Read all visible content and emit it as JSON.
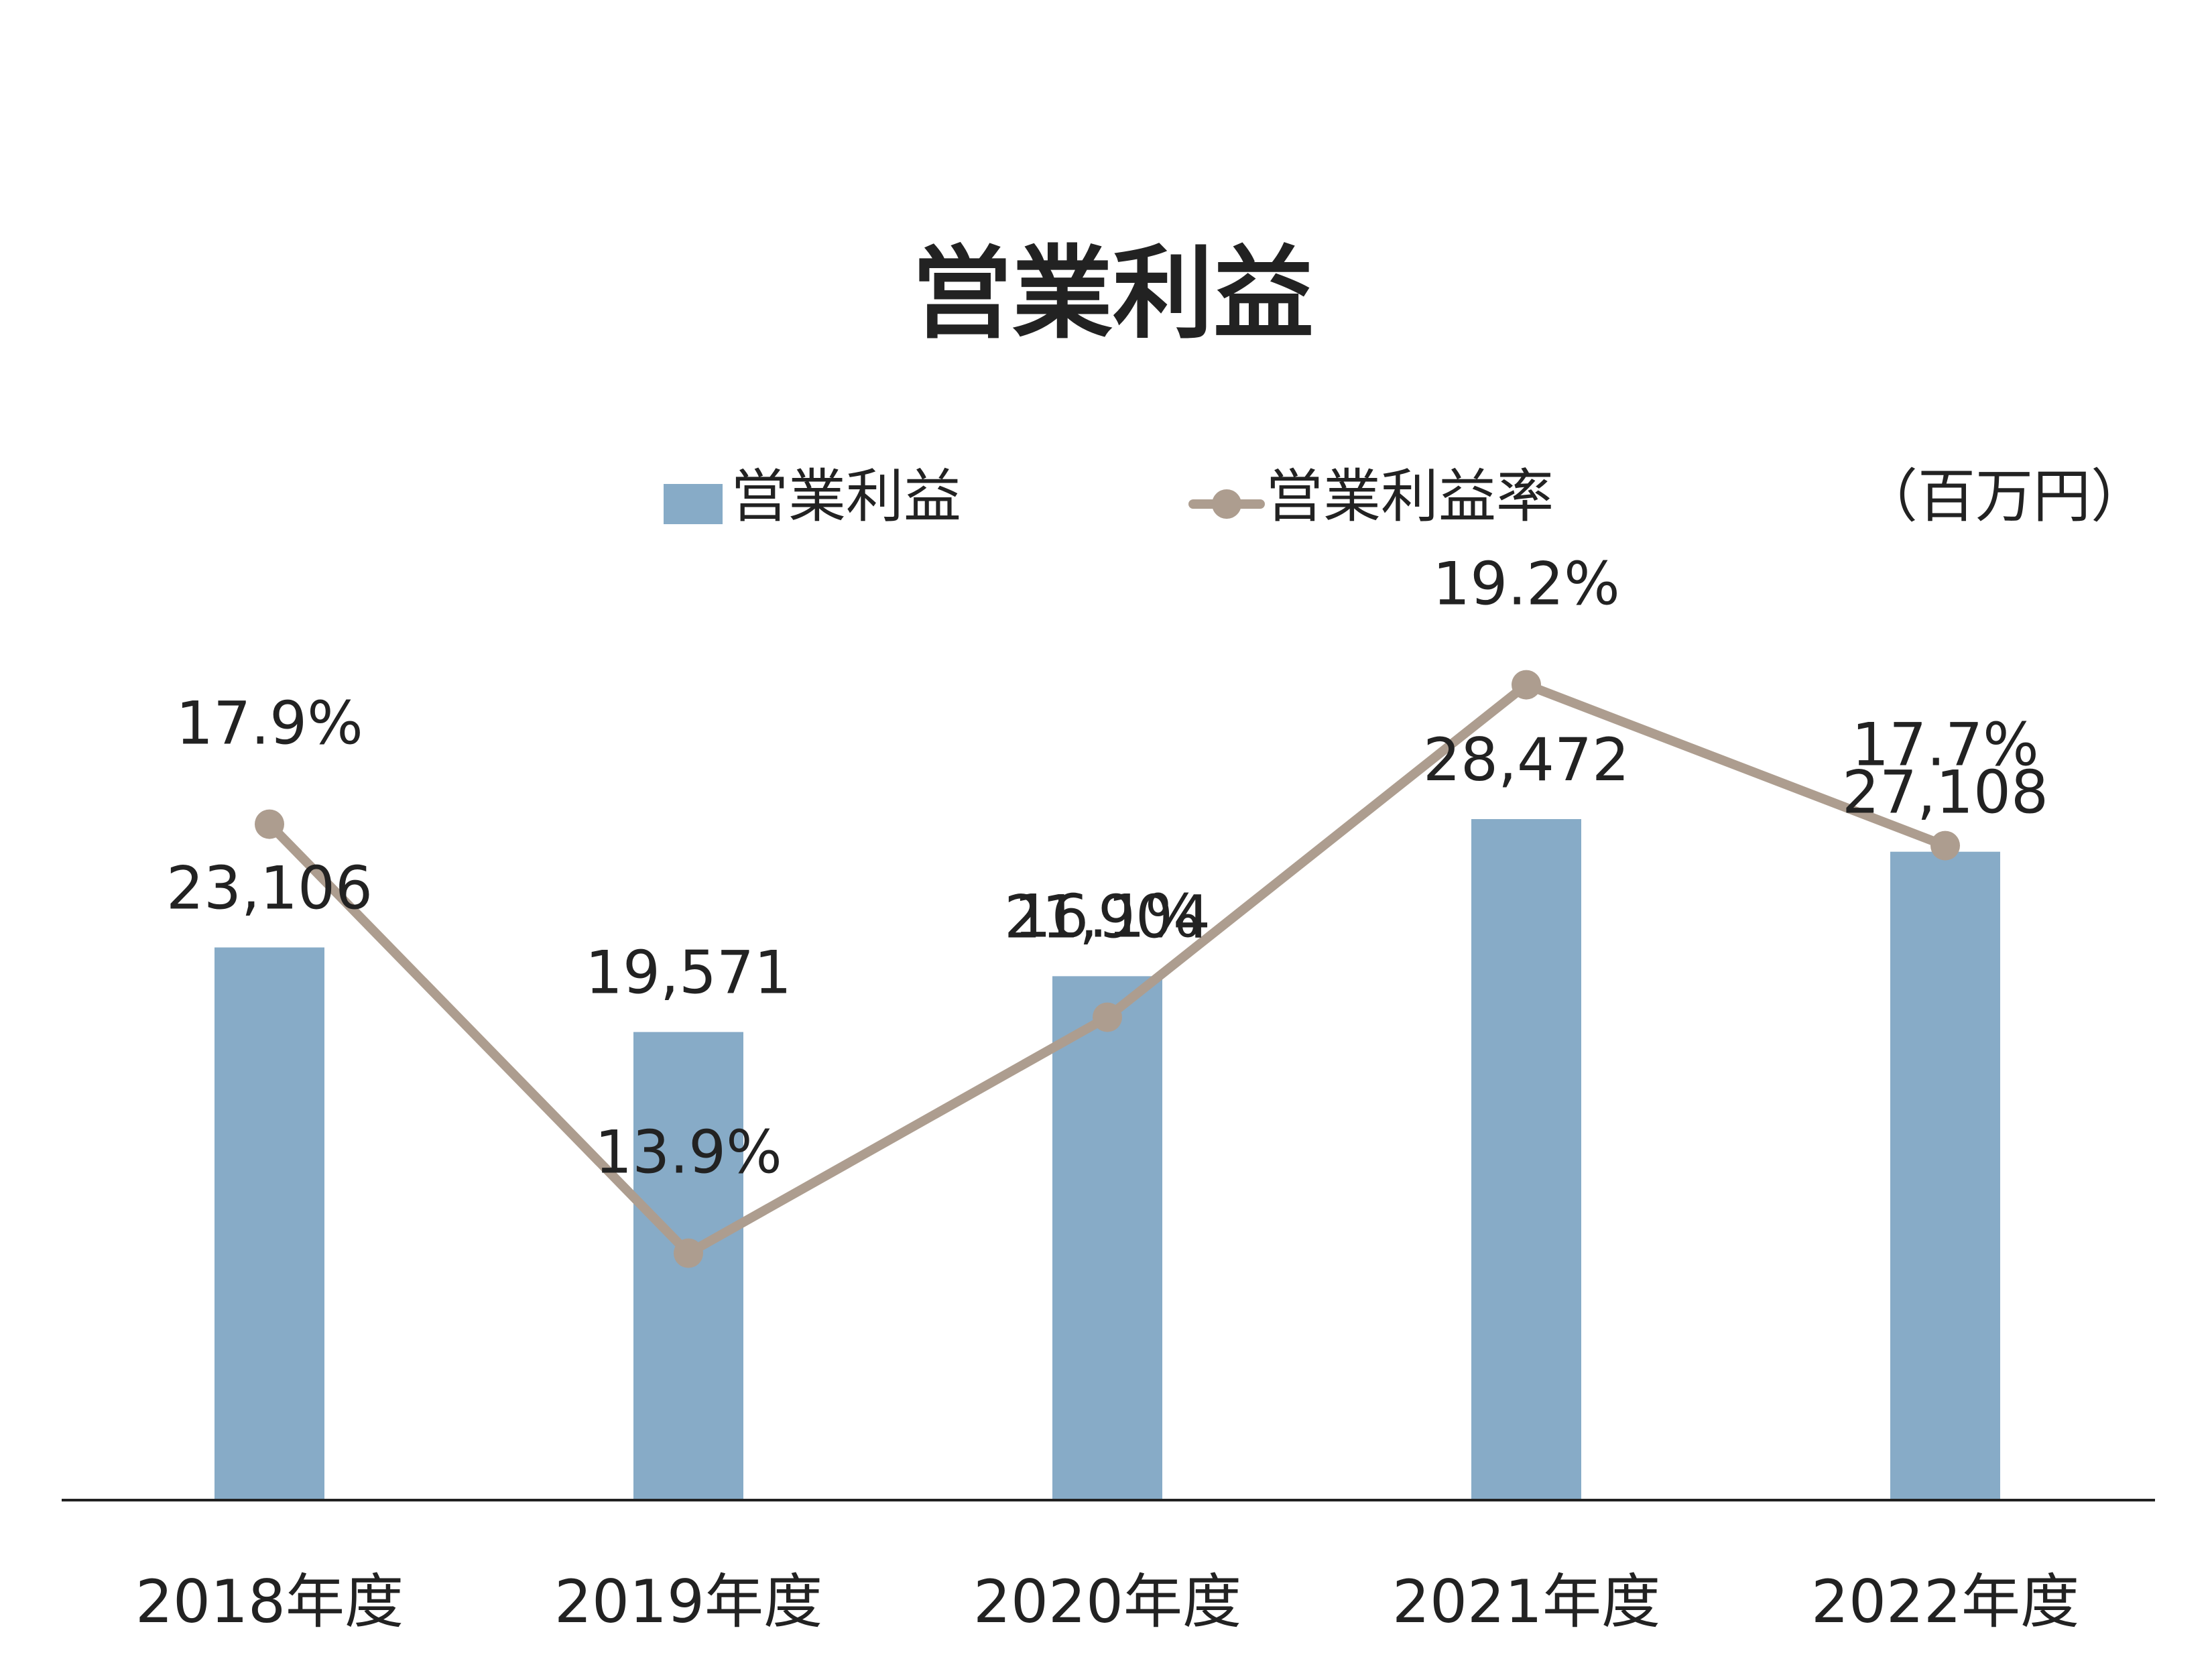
{
  "chart_data": {
    "type": "bar",
    "title": "営業利益",
    "unit": "（百万円）",
    "categories": [
      "2018年度",
      "2019年度",
      "2020年度",
      "2021年度",
      "2022年度"
    ],
    "series": [
      {
        "name": "営業利益",
        "kind": "bar",
        "color": "#87abc7",
        "values": [
          23106,
          19571,
          21904,
          28472,
          27108
        ],
        "labels": [
          "23,106",
          "19,571",
          "21,904",
          "28,472",
          "27,108"
        ]
      },
      {
        "name": "営業利益率",
        "kind": "line",
        "color": "#ad9d8f",
        "values": [
          17.9,
          13.9,
          16.1,
          19.2,
          17.7
        ],
        "labels": [
          "17.9%",
          "13.9%",
          "16.1%",
          "19.2%",
          "17.7%"
        ]
      }
    ],
    "legend_position": "top",
    "grid": false
  }
}
